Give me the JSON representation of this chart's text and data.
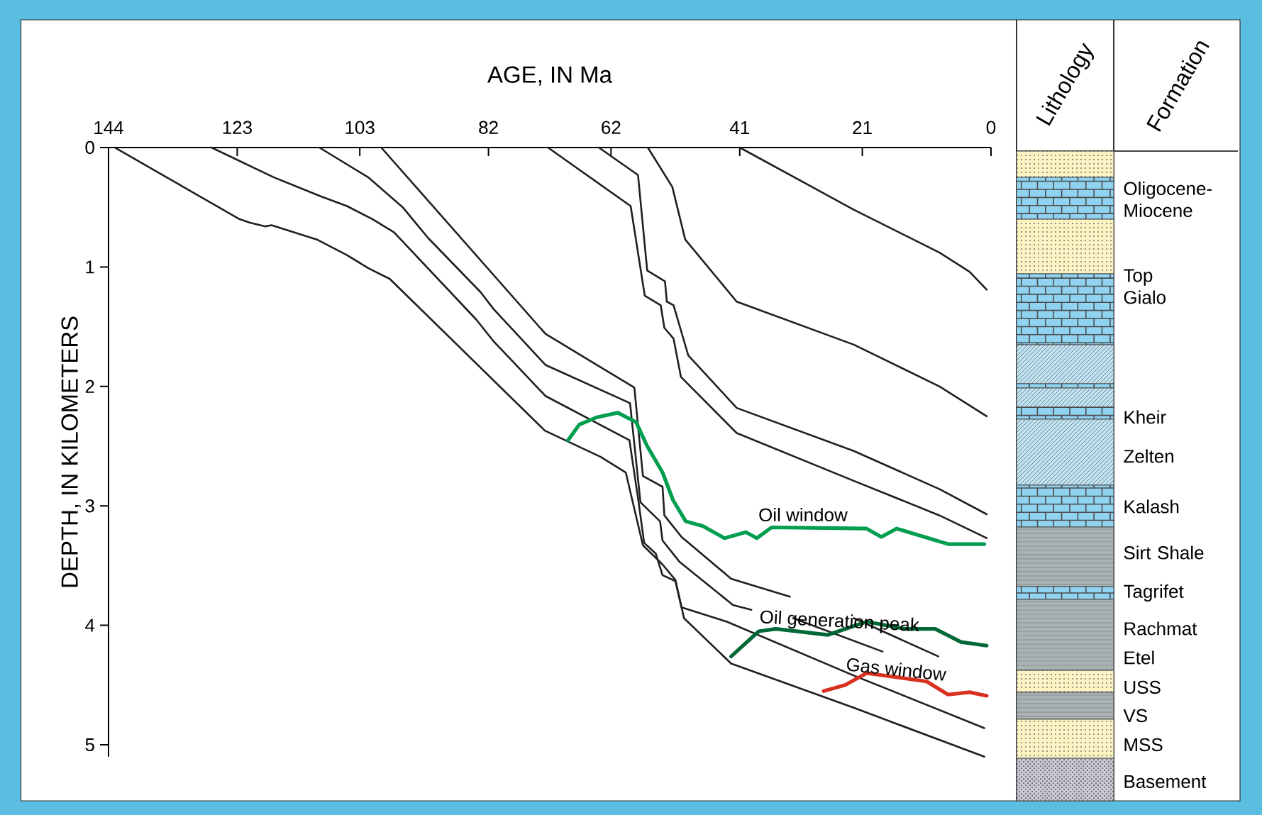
{
  "chart_data": [
    {
      "type": "line",
      "xlabel": "AGE, IN Ma",
      "ylabel": "DEPTH, IN KILOMETERS",
      "xlim": [
        144,
        0
      ],
      "ylim": [
        5.1,
        0
      ],
      "xticks": [
        144,
        123,
        103,
        82,
        62,
        41,
        21,
        0
      ],
      "yticks": [
        0,
        1,
        2,
        3,
        4,
        5
      ],
      "series": [
        {
          "color": "#231f20",
          "x": [
            41,
            22.4,
            8.4,
            3.5,
            0.7
          ],
          "values": [
            0,
            0.52,
            0.88,
            1.04,
            1.19
          ]
        },
        {
          "color": "#231f20",
          "x": [
            56.0,
            52.0,
            49.9,
            41.5,
            22.4,
            8.4,
            0.7
          ],
          "values": [
            0,
            0.33,
            0.77,
            1.29,
            1.65,
            2.0,
            2.25
          ]
        },
        {
          "color": "#231f20",
          "x": [
            64.0,
            57.6,
            56.1,
            53.2,
            52.9,
            51.8,
            49.4,
            41.5,
            22.4,
            8.4,
            0.7
          ],
          "values": [
            0,
            0.23,
            1.03,
            1.12,
            1.29,
            1.32,
            1.74,
            2.18,
            2.54,
            2.86,
            3.07
          ]
        },
        {
          "color": "#231f20",
          "x": [
            72.3,
            58.8,
            56.5,
            53.9,
            53.3,
            51.8,
            50.6,
            41.5,
            22.4,
            8.4,
            0.7
          ],
          "values": [
            0,
            0.49,
            1.24,
            1.32,
            1.51,
            1.6,
            1.92,
            2.39,
            2.79,
            3.08,
            3.27
          ]
        },
        {
          "color": "#231f20",
          "x": [
            99.5,
            72.7,
            58.2,
            56.8,
            53.6,
            53.3,
            50.5,
            42.4,
            32.8,
            27,
            22.4,
            8.6
          ],
          "values": [
            0,
            1.56,
            2.01,
            2.75,
            2.84,
            3.08,
            3.26,
            3.61,
            3.76,
            null,
            3.94,
            4.26
          ]
        },
        {
          "color": "#231f20",
          "x": [
            109.6,
            101.6,
            96.0,
            93.9,
            91.8,
            83.3,
            81.2,
            72.7,
            58.9,
            57.2,
            54.0,
            53.6,
            50.8,
            42.1,
            39.1,
            35.5,
            32.3,
            17.7
          ],
          "values": [
            0,
            0.25,
            0.5,
            0.63,
            0.76,
            1.21,
            1.35,
            1.82,
            2.14,
            2.97,
            3.13,
            3.29,
            3.47,
            3.83,
            3.87,
            null,
            3.94,
            4.22
          ]
        },
        {
          "color": "#231f20",
          "x": [
            127.2,
            117.0,
            109.3,
            105.1,
            100.9,
            97.4,
            84.0,
            81.2,
            72.7,
            59.0,
            57.5,
            56.6,
            54.7,
            53.6,
            51.5,
            50.5,
            43.1,
            22.4,
            1.1
          ],
          "values": [
            0,
            0.25,
            0.41,
            0.49,
            0.6,
            0.71,
            1.44,
            1.62,
            2.08,
            2.45,
            2.97,
            3.31,
            3.4,
            3.58,
            3.63,
            3.85,
            3.97,
            4.42,
            4.86
          ]
        },
        {
          "color": "#231f20",
          "x": [
            143,
            122.6,
            120.9,
            118.4,
            117.4,
            110.0,
            105.1,
            101.6,
            98.1,
            72.8,
            63.7,
            59.6,
            56.8,
            53.6,
            51.5,
            50.1,
            42.4,
            22.4,
            1.1
          ],
          "values": [
            0,
            0.6,
            0.63,
            0.66,
            0.65,
            0.77,
            0.9,
            1.01,
            1.1,
            2.37,
            2.59,
            2.72,
            3.33,
            3.49,
            3.62,
            3.94,
            4.32,
            4.69,
            5.1
          ]
        },
        {
          "name": "Oil window",
          "color": "#009e4f",
          "x": [
            69.0,
            67.2,
            64.4,
            60.9,
            57.9,
            56.1,
            53.6,
            51.9,
            49.8,
            47.0,
            43.5,
            40.0,
            38.2,
            35.8,
            20.3,
            17.9,
            15.4,
            7.0,
            1.1
          ],
          "values": [
            2.45,
            2.32,
            2.26,
            2.22,
            2.3,
            2.5,
            2.72,
            2.95,
            3.13,
            3.17,
            3.27,
            3.22,
            3.27,
            3.18,
            3.19,
            3.26,
            3.19,
            3.32,
            3.32
          ]
        },
        {
          "name": "Oil generation peak",
          "color": "#006837",
          "x": [
            42.4,
            37.9,
            35.1,
            26.6,
            20.3,
            14.0,
            9.1,
            4.9,
            0.7
          ],
          "values": [
            4.26,
            4.05,
            4.03,
            4.08,
            3.97,
            4.03,
            4.03,
            4.14,
            4.17
          ]
        },
        {
          "name": "Gas window",
          "color": "#d7301f",
          "x": [
            27.3,
            23.8,
            20.3,
            10.5,
            7.0,
            3.5,
            0.7
          ],
          "values": [
            4.55,
            4.5,
            4.4,
            4.47,
            4.58,
            4.56,
            4.59
          ]
        }
      ]
    },
    {
      "type": "other",
      "annotations": [
        "Lithology",
        "Formation",
        "Oligocene-Miocene",
        "Top Gialo",
        "Kheir",
        "Zelten",
        "Kalash",
        "Sirt Shale",
        "Tagrifet",
        "Rachmat",
        "Etel",
        "USS",
        "VS",
        "MSS",
        "Basement"
      ]
    }
  ]
}
